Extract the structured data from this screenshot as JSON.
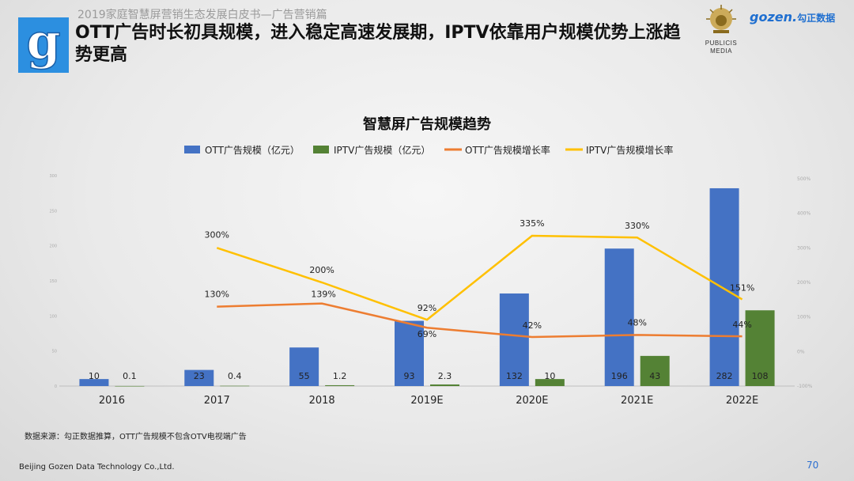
{
  "header": {
    "breadcrumb": "2019家庭智慧屏营销生态发展白皮书—广告营销篇",
    "title": "OTT广告时长初具规模，进入稳定高速发展期，IPTV依靠用户规模优势上涨趋势更高",
    "logo_g_letter": "g",
    "publicis_line1": "PUBLICIS",
    "publicis_line2": "MEDIA",
    "gozen_en": "gozen.",
    "gozen_cn": "勾正数据"
  },
  "footer": {
    "source_note": "数据来源：勾正数据推算，OTT广告规模不包含OTV电视端广告",
    "company": "Beijing Gozen Data Technology Co.,Ltd.",
    "page_number": "70"
  },
  "colors": {
    "ott_bar": "#4472c4",
    "iptv_bar": "#548235",
    "ott_line": "#ed7d31",
    "iptv_line": "#ffc000"
  },
  "chart_data": {
    "type": "bar",
    "title": "智慧屏广告规模趋势",
    "categories": [
      "2016",
      "2017",
      "2018",
      "2019E",
      "2020E",
      "2021E",
      "2022E"
    ],
    "series": [
      {
        "name": "OTT广告规模（亿元）",
        "type": "bar",
        "axis": "left",
        "values": [
          10,
          23,
          55,
          93,
          132,
          196,
          282
        ],
        "labels": [
          "10",
          "23",
          "55",
          "93",
          "132",
          "196",
          "282"
        ]
      },
      {
        "name": "IPTV广告规模（亿元）",
        "type": "bar",
        "axis": "left",
        "values": [
          0.1,
          0.4,
          1.2,
          2.3,
          10,
          43,
          108
        ],
        "labels": [
          "0.1",
          "0.4",
          "1.2",
          "2.3",
          "10",
          "43",
          "108"
        ]
      },
      {
        "name": "OTT广告规模增长率",
        "type": "line",
        "axis": "right",
        "values": [
          null,
          130,
          139,
          69,
          42,
          48,
          44
        ],
        "labels": [
          "",
          "130%",
          "139%",
          "69%",
          "42%",
          "48%",
          "44%"
        ]
      },
      {
        "name": "IPTV广告规模增长率",
        "type": "line",
        "axis": "right",
        "values": [
          null,
          300,
          200,
          92,
          335,
          330,
          151
        ],
        "labels": [
          "",
          "300%",
          "200%",
          "92%",
          "335%",
          "330%",
          "151%"
        ]
      }
    ],
    "left_axis": {
      "ylim": [
        0,
        300
      ],
      "ticks": [
        "0",
        "50",
        "100",
        "150",
        "200",
        "250",
        "300"
      ]
    },
    "right_axis": {
      "ylim": [
        -100,
        500
      ],
      "ticks": [
        "-100%",
        "0%",
        "100%",
        "200%",
        "300%",
        "400%",
        "500%"
      ]
    },
    "legend_position": "top",
    "grid": false
  }
}
